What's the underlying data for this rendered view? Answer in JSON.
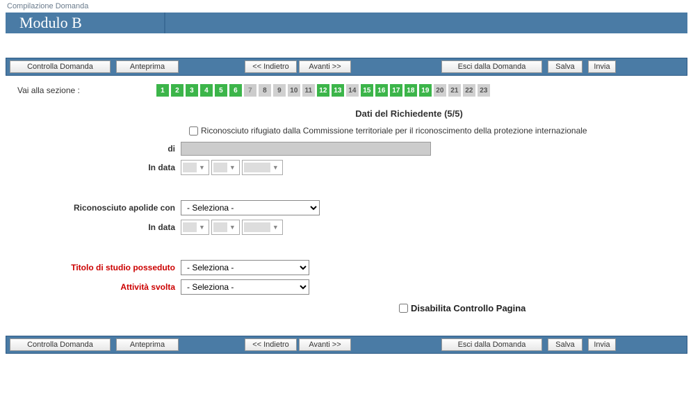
{
  "breadcrumb": "Compilazione Domanda",
  "module_title": "Modulo B",
  "toolbar": {
    "controlla": "Controlla Domanda",
    "anteprima": "Anteprima",
    "indietro": "<< Indietro",
    "avanti": "Avanti >>",
    "esci": "Esci dalla Domanda",
    "salva": "Salva",
    "invia": "Invia"
  },
  "nav": {
    "label": "Vai alla sezione :",
    "pages": [
      {
        "n": "1",
        "state": "green"
      },
      {
        "n": "2",
        "state": "green"
      },
      {
        "n": "3",
        "state": "green"
      },
      {
        "n": "4",
        "state": "green"
      },
      {
        "n": "5",
        "state": "green"
      },
      {
        "n": "6",
        "state": "green"
      },
      {
        "n": "7",
        "state": "current"
      },
      {
        "n": "8",
        "state": "gray"
      },
      {
        "n": "9",
        "state": "gray"
      },
      {
        "n": "10",
        "state": "gray"
      },
      {
        "n": "11",
        "state": "gray"
      },
      {
        "n": "12",
        "state": "green"
      },
      {
        "n": "13",
        "state": "green"
      },
      {
        "n": "14",
        "state": "gray"
      },
      {
        "n": "15",
        "state": "green"
      },
      {
        "n": "16",
        "state": "green"
      },
      {
        "n": "17",
        "state": "green"
      },
      {
        "n": "18",
        "state": "green"
      },
      {
        "n": "19",
        "state": "green"
      },
      {
        "n": "20",
        "state": "gray"
      },
      {
        "n": "21",
        "state": "gray"
      },
      {
        "n": "22",
        "state": "gray"
      },
      {
        "n": "23",
        "state": "gray"
      }
    ]
  },
  "section_title": "Dati del Richiedente (5/5)",
  "form": {
    "checkbox_rifugiato": "Riconosciuto rifugiato dalla Commissione territoriale per il riconoscimento della protezione internazionale",
    "di_label": "di",
    "in_data_label": "In data",
    "riconosciuto_apolide_label": "Riconosciuto apolide con",
    "seleziona": "- Seleziona -",
    "titolo_studio_label": "Titolo di studio posseduto",
    "attivita_label": "Attività svolta",
    "disabilita_label": "Disabilita Controllo Pagina"
  },
  "colors": {
    "header_bg": "#4a7ba5",
    "page_green": "#3cb54a",
    "page_gray": "#d0d0d0",
    "required_label": "#c00"
  }
}
